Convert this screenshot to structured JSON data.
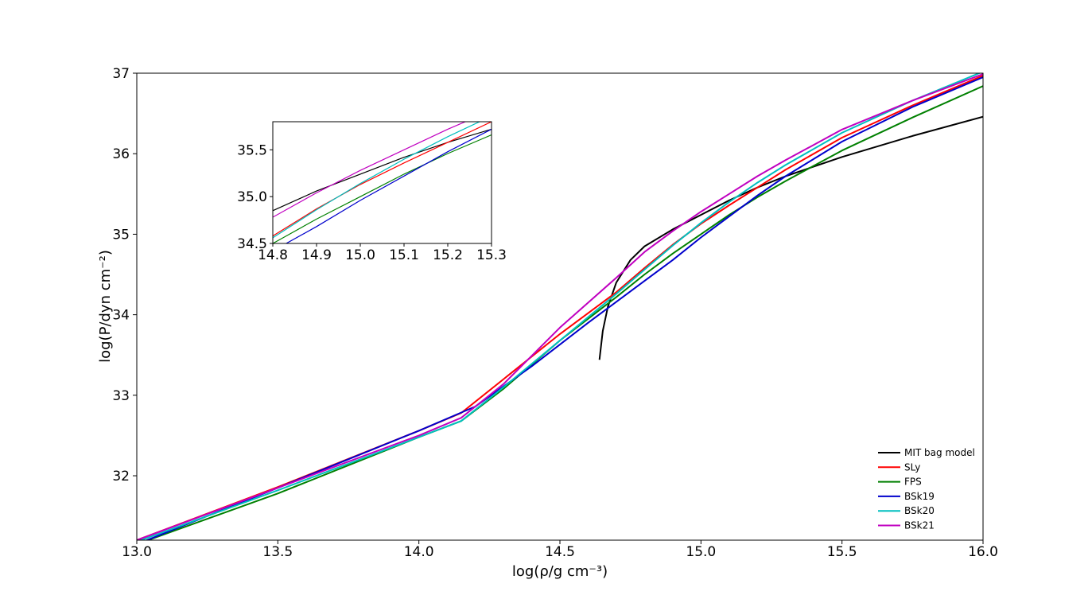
{
  "chart_data": {
    "type": "line",
    "xlabel": "log(ρ/g cm⁻³)",
    "ylabel": "log(P/dyn cm⁻²)",
    "xlim": [
      13.0,
      16.0
    ],
    "ylim": [
      31.2,
      37.0
    ],
    "xticks": [
      "13.0",
      "13.5",
      "14.0",
      "14.5",
      "15.0",
      "15.5",
      "16.0"
    ],
    "yticks": [
      "32",
      "33",
      "34",
      "35",
      "36",
      "37"
    ],
    "grid": false,
    "legend_position": "lower-right",
    "series": [
      {
        "name": "MIT bag model",
        "color": "#000000",
        "points": [
          [
            14.64,
            33.44
          ],
          [
            14.652,
            33.8
          ],
          [
            14.67,
            34.1
          ],
          [
            14.7,
            34.4
          ],
          [
            14.75,
            34.68
          ],
          [
            14.8,
            34.85
          ],
          [
            14.9,
            35.06
          ],
          [
            15.0,
            35.24
          ],
          [
            15.1,
            35.42
          ],
          [
            15.2,
            35.58
          ],
          [
            15.3,
            35.72
          ],
          [
            15.5,
            35.96
          ],
          [
            15.75,
            36.22
          ],
          [
            16.0,
            36.46
          ]
        ]
      },
      {
        "name": "SLy",
        "color": "#ff0000",
        "points": [
          [
            13.0,
            31.2
          ],
          [
            13.5,
            31.86
          ],
          [
            14.0,
            32.56
          ],
          [
            14.15,
            32.78
          ],
          [
            14.3,
            33.2
          ],
          [
            14.5,
            33.76
          ],
          [
            14.7,
            34.28
          ],
          [
            14.8,
            34.58
          ],
          [
            14.9,
            34.87
          ],
          [
            15.0,
            35.13
          ],
          [
            15.1,
            35.36
          ],
          [
            15.2,
            35.58
          ],
          [
            15.3,
            35.8
          ],
          [
            15.5,
            36.2
          ],
          [
            15.75,
            36.6
          ],
          [
            16.0,
            36.97
          ]
        ]
      },
      {
        "name": "FPS",
        "color": "#008000",
        "points": [
          [
            13.0,
            31.15
          ],
          [
            13.5,
            31.78
          ],
          [
            14.0,
            32.48
          ],
          [
            14.15,
            32.68
          ],
          [
            14.3,
            33.08
          ],
          [
            14.5,
            33.68
          ],
          [
            14.7,
            34.22
          ],
          [
            14.8,
            34.5
          ],
          [
            14.9,
            34.76
          ],
          [
            15.0,
            35.0
          ],
          [
            15.1,
            35.24
          ],
          [
            15.2,
            35.46
          ],
          [
            15.3,
            35.66
          ],
          [
            15.5,
            36.04
          ],
          [
            15.75,
            36.45
          ],
          [
            16.0,
            36.84
          ]
        ]
      },
      {
        "name": "BSk19",
        "color": "#0000cc",
        "points": [
          [
            13.0,
            31.15
          ],
          [
            13.5,
            31.85
          ],
          [
            14.0,
            32.56
          ],
          [
            14.2,
            32.86
          ],
          [
            14.4,
            33.36
          ],
          [
            14.6,
            33.9
          ],
          [
            14.8,
            34.42
          ],
          [
            14.9,
            34.68
          ],
          [
            15.0,
            34.96
          ],
          [
            15.1,
            35.22
          ],
          [
            15.2,
            35.48
          ],
          [
            15.3,
            35.72
          ],
          [
            15.5,
            36.15
          ],
          [
            15.75,
            36.58
          ],
          [
            16.0,
            36.95
          ]
        ]
      },
      {
        "name": "BSk20",
        "color": "#00bfbf",
        "points": [
          [
            13.0,
            31.18
          ],
          [
            13.5,
            31.82
          ],
          [
            14.0,
            32.48
          ],
          [
            14.15,
            32.68
          ],
          [
            14.3,
            33.1
          ],
          [
            14.5,
            33.68
          ],
          [
            14.7,
            34.26
          ],
          [
            14.8,
            34.56
          ],
          [
            14.9,
            34.86
          ],
          [
            15.0,
            35.14
          ],
          [
            15.1,
            35.4
          ],
          [
            15.2,
            35.64
          ],
          [
            15.3,
            35.86
          ],
          [
            15.5,
            36.26
          ],
          [
            15.75,
            36.66
          ],
          [
            16.0,
            37.02
          ]
        ]
      },
      {
        "name": "BSk21",
        "color": "#c000c0",
        "points": [
          [
            13.0,
            31.2
          ],
          [
            13.5,
            31.85
          ],
          [
            14.0,
            32.5
          ],
          [
            14.15,
            32.72
          ],
          [
            14.3,
            33.14
          ],
          [
            14.5,
            33.84
          ],
          [
            14.7,
            34.46
          ],
          [
            14.8,
            34.78
          ],
          [
            14.9,
            35.04
          ],
          [
            15.0,
            35.28
          ],
          [
            15.1,
            35.5
          ],
          [
            15.2,
            35.72
          ],
          [
            15.3,
            35.92
          ],
          [
            15.5,
            36.3
          ],
          [
            15.75,
            36.66
          ],
          [
            16.0,
            36.99
          ]
        ]
      }
    ],
    "inset": {
      "xlim": [
        14.8,
        15.3
      ],
      "ylim": [
        34.5,
        35.8
      ],
      "xticks": [
        "14.8",
        "14.9",
        "15.0",
        "15.1",
        "15.2",
        "15.3"
      ],
      "yticks": [
        "34.5",
        "35.0",
        "35.5"
      ]
    }
  }
}
